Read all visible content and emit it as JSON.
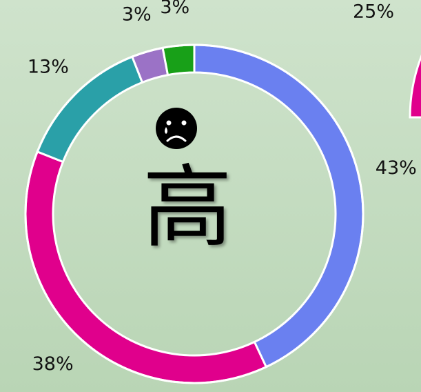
{
  "chart_data": [
    {
      "type": "donut",
      "center_text": "高",
      "values": [
        43,
        38,
        13,
        3,
        3
      ],
      "value_labels": [
        "43%",
        "38%",
        "13%",
        "3%",
        "3%"
      ],
      "colors": [
        "#6a80f0",
        "#e0008c",
        "#2aa0a8",
        "#9b72c6",
        "#18a018"
      ]
    },
    {
      "type": "donut",
      "values": [
        25
      ],
      "value_labels": [
        "25%"
      ],
      "colors": [
        "#e0008c"
      ]
    }
  ]
}
